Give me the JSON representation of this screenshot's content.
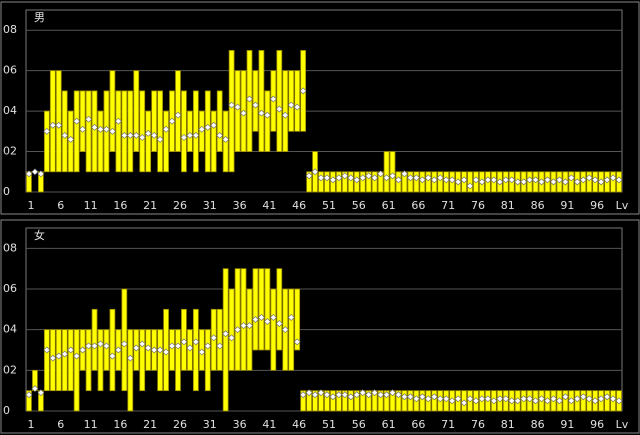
{
  "chart_data": [
    {
      "type": "range",
      "title": "男",
      "x_label": "Lv",
      "categories": [
        1,
        null,
        null,
        null,
        null,
        6,
        null,
        null,
        null,
        null,
        11,
        null,
        null,
        null,
        null,
        16,
        null,
        null,
        null,
        null,
        21,
        null,
        null,
        null,
        null,
        26,
        null,
        null,
        null,
        null,
        31,
        null,
        null,
        null,
        null,
        36,
        null,
        null,
        null,
        null,
        41,
        null,
        null,
        null,
        null,
        46,
        null,
        null,
        null,
        null,
        51,
        null,
        null,
        null,
        null,
        56,
        null,
        null,
        null,
        null,
        61,
        null,
        null,
        null,
        null,
        66,
        null,
        null,
        null,
        null,
        71,
        null,
        null,
        null,
        null,
        76,
        null,
        null,
        null,
        null,
        81,
        null,
        null,
        null,
        null,
        86,
        null,
        null,
        null,
        null,
        91,
        null,
        null,
        null,
        null,
        96,
        null,
        null,
        null,
        null
      ],
      "lows": [
        0,
        1,
        0,
        1,
        1,
        1,
        1,
        1,
        1,
        2,
        1,
        1,
        1,
        1,
        2,
        1,
        1,
        1,
        2,
        1,
        1,
        2,
        1,
        1,
        2,
        2,
        1,
        2,
        1,
        2,
        1,
        1,
        2,
        1,
        1,
        2,
        2,
        2,
        3,
        2,
        2,
        3,
        2,
        2,
        3,
        3,
        3,
        0,
        0,
        0,
        0,
        0,
        0,
        0,
        0,
        0,
        0,
        0,
        0,
        0,
        0,
        0,
        0,
        0,
        0,
        0,
        0,
        0,
        0,
        0,
        0,
        0,
        0,
        0,
        0,
        0,
        0,
        0,
        0,
        0,
        0,
        0,
        0,
        0,
        0,
        0,
        0,
        0,
        0,
        0,
        0,
        0,
        0,
        0,
        0,
        0,
        0,
        0,
        0,
        0
      ],
      "highs": [
        1,
        1,
        1,
        4,
        6,
        6,
        5,
        4,
        5,
        5,
        5,
        5,
        4,
        5,
        6,
        5,
        5,
        5,
        6,
        5,
        4,
        5,
        5,
        4,
        5,
        6,
        5,
        4,
        5,
        4,
        5,
        4,
        5,
        4,
        7,
        6,
        6,
        7,
        6,
        7,
        5,
        6,
        7,
        6,
        6,
        6,
        7,
        1,
        2,
        1,
        1,
        1,
        1,
        1,
        1,
        1,
        1,
        1,
        1,
        1,
        2,
        2,
        1,
        1,
        1,
        1,
        1,
        1,
        1,
        1,
        1,
        1,
        1,
        1,
        1,
        1,
        1,
        1,
        1,
        1,
        1,
        1,
        1,
        1,
        1,
        1,
        1,
        1,
        1,
        1,
        1,
        1,
        1,
        1,
        1,
        1,
        1,
        1,
        1,
        1
      ],
      "means": [
        0.9,
        1,
        0.9,
        3.0,
        3.3,
        3.3,
        2.8,
        2.6,
        3.5,
        3.1,
        3.6,
        3.2,
        3.1,
        3.1,
        3.0,
        3.5,
        2.8,
        2.8,
        2.8,
        2.7,
        2.9,
        2.8,
        2.6,
        3.1,
        3.5,
        3.8,
        2.7,
        2.8,
        2.8,
        3.1,
        3.2,
        3.3,
        2.8,
        2.6,
        4.3,
        4.2,
        3.9,
        4.6,
        4.3,
        3.9,
        3.8,
        4.6,
        4.1,
        3.8,
        4.3,
        4.2,
        5.0,
        0.8,
        1.0,
        0.7,
        0.7,
        0.6,
        0.7,
        0.8,
        0.7,
        0.6,
        0.7,
        0.8,
        0.7,
        0.9,
        0.7,
        0.8,
        0.6,
        0.9,
        0.7,
        0.7,
        0.6,
        0.7,
        0.6,
        0.7,
        0.6,
        0.6,
        0.5,
        0.6,
        0.3,
        0.6,
        0.5,
        0.6,
        0.6,
        0.5,
        0.6,
        0.6,
        0.5,
        0.5,
        0.6,
        0.6,
        0.5,
        0.6,
        0.5,
        0.6,
        0.5,
        0.7,
        0.5,
        0.6,
        0.7,
        0.6,
        0.5,
        0.6,
        0.7,
        0.6
      ],
      "ylim": [
        0,
        9
      ],
      "yticks": [
        0,
        {
          "value": 2,
          "label": "02"
        },
        {
          "value": 4,
          "label": "04"
        },
        {
          "value": 6,
          "label": "06"
        },
        {
          "value": 8,
          "label": "08"
        }
      ],
      "grid": true,
      "color": "#ffff00"
    },
    {
      "type": "range",
      "title": "女",
      "x_label": "Lv",
      "categories": [
        1,
        null,
        null,
        null,
        null,
        6,
        null,
        null,
        null,
        null,
        11,
        null,
        null,
        null,
        null,
        16,
        null,
        null,
        null,
        null,
        21,
        null,
        null,
        null,
        null,
        26,
        null,
        null,
        null,
        null,
        31,
        null,
        null,
        null,
        null,
        36,
        null,
        null,
        null,
        null,
        41,
        null,
        null,
        null,
        null,
        46,
        null,
        null,
        null,
        null,
        51,
        null,
        null,
        null,
        null,
        56,
        null,
        null,
        null,
        null,
        61,
        null,
        null,
        null,
        null,
        66,
        null,
        null,
        null,
        null,
        71,
        null,
        null,
        null,
        null,
        76,
        null,
        null,
        null,
        null,
        81,
        null,
        null,
        null,
        null,
        86,
        null,
        null,
        null,
        null,
        91,
        null,
        null,
        null,
        null,
        96,
        null,
        null,
        null,
        null
      ],
      "lows": [
        0,
        1,
        0,
        1,
        1,
        1,
        1,
        1,
        0,
        2,
        1,
        2,
        1,
        2,
        1,
        2,
        1,
        0,
        2,
        1,
        2,
        2,
        1,
        1,
        2,
        1,
        2,
        2,
        1,
        2,
        1,
        2,
        2,
        0,
        2,
        2,
        2,
        2,
        3,
        3,
        3,
        2,
        3,
        2,
        2,
        3,
        0,
        0,
        0,
        0,
        0,
        0,
        0,
        0,
        0,
        0,
        0,
        0,
        0,
        0,
        0,
        0,
        0,
        0,
        0,
        0,
        0,
        0,
        0,
        0,
        0,
        0,
        0,
        0,
        0,
        0,
        0,
        0,
        0,
        0,
        0,
        0,
        0,
        0,
        0,
        0,
        0,
        0,
        0,
        0,
        0,
        0,
        0,
        0,
        0,
        0,
        0,
        0,
        0,
        0
      ],
      "highs": [
        1,
        2,
        1,
        4,
        4,
        4,
        4,
        4,
        4,
        4,
        4,
        5,
        4,
        4,
        5,
        4,
        6,
        4,
        4,
        4,
        4,
        4,
        4,
        5,
        4,
        4,
        5,
        4,
        5,
        4,
        4,
        5,
        5,
        7,
        6,
        7,
        7,
        6,
        7,
        7,
        7,
        6,
        7,
        6,
        6,
        6,
        1,
        1,
        1,
        1,
        1,
        1,
        1,
        1,
        1,
        1,
        1,
        1,
        1,
        1,
        1,
        1,
        1,
        1,
        1,
        1,
        1,
        1,
        1,
        1,
        1,
        1,
        1,
        1,
        1,
        1,
        1,
        1,
        1,
        1,
        1,
        1,
        1,
        1,
        1,
        1,
        1,
        1,
        1,
        1,
        1,
        1,
        1,
        1,
        1,
        1,
        1,
        1,
        1,
        1
      ],
      "means": [
        0.8,
        1.1,
        0.9,
        3.0,
        2.6,
        2.7,
        2.8,
        3.0,
        2.7,
        3.0,
        3.2,
        3.2,
        3.3,
        3.2,
        2.7,
        3.0,
        3.3,
        2.6,
        3.1,
        3.3,
        3.1,
        3.0,
        3.0,
        2.9,
        3.2,
        3.2,
        3.4,
        3.1,
        3.4,
        2.9,
        3.2,
        3.6,
        3.2,
        3.8,
        3.6,
        4.0,
        4.2,
        4.2,
        4.5,
        4.6,
        4.4,
        4.6,
        4.3,
        4.0,
        4.6,
        3.4,
        0.8,
        0.9,
        0.8,
        0.9,
        0.8,
        0.7,
        0.8,
        0.8,
        0.7,
        0.8,
        0.9,
        0.8,
        0.9,
        0.8,
        0.8,
        0.9,
        0.8,
        0.7,
        0.7,
        0.6,
        0.7,
        0.6,
        0.7,
        0.6,
        0.6,
        0.5,
        0.6,
        0.4,
        0.6,
        0.5,
        0.6,
        0.6,
        0.5,
        0.6,
        0.6,
        0.5,
        0.5,
        0.6,
        0.6,
        0.5,
        0.6,
        0.5,
        0.6,
        0.5,
        0.7,
        0.5,
        0.6,
        0.7,
        0.6,
        0.5,
        0.6,
        0.7,
        0.6,
        0.5
      ],
      "ylim": [
        0,
        9
      ],
      "yticks": [
        0,
        {
          "value": 2,
          "label": "02"
        },
        {
          "value": 4,
          "label": "04"
        },
        {
          "value": 6,
          "label": "06"
        },
        {
          "value": 8,
          "label": "08"
        }
      ],
      "grid": true,
      "color": "#ffff00"
    }
  ]
}
